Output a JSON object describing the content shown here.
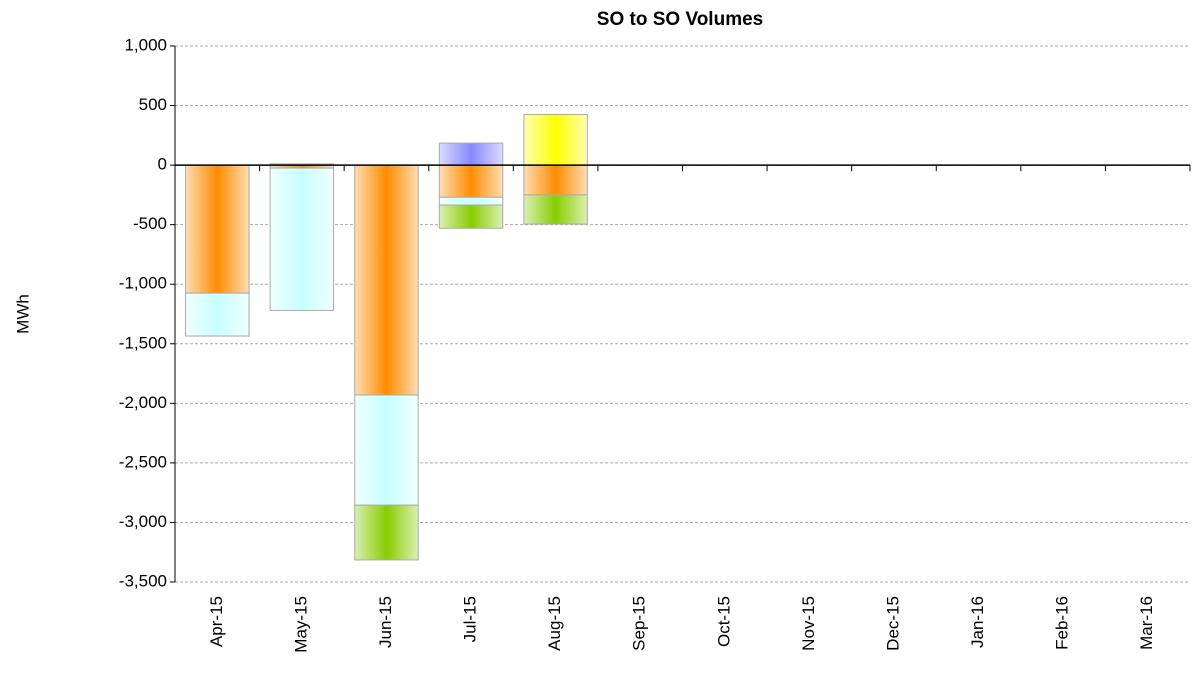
{
  "chart_data": {
    "type": "bar",
    "stacked": true,
    "title": "SO to SO Volumes",
    "y_label": "MWh",
    "categories": [
      "Apr-15",
      "May-15",
      "Jun-15",
      "Jul-15",
      "Aug-15",
      "Sep-15",
      "Oct-15",
      "Nov-15",
      "Dec-15",
      "Jan-16",
      "Feb-16",
      "Mar-16"
    ],
    "series": [
      {
        "color": "#ff8c00",
        "values": [
          -1075,
          -25,
          -1930,
          -270,
          -250,
          null,
          null,
          null,
          null,
          null,
          null,
          null
        ]
      },
      {
        "color": "#c8ffff",
        "values": [
          -360,
          -1195,
          -925,
          -65,
          null,
          null,
          null,
          null,
          null,
          null,
          null,
          null
        ]
      },
      {
        "color": "#88cc00",
        "values": [
          null,
          null,
          -460,
          -195,
          -245,
          null,
          null,
          null,
          null,
          null,
          null,
          null
        ]
      },
      {
        "color": "#8888ff",
        "values": [
          null,
          10,
          null,
          185,
          null,
          null,
          null,
          null,
          null,
          null,
          null,
          null
        ]
      },
      {
        "color": "#ffff00",
        "values": [
          null,
          null,
          null,
          null,
          425,
          null,
          null,
          null,
          null,
          null,
          null,
          null
        ]
      }
    ],
    "ylim": [
      -3500,
      1000
    ],
    "yticks": [
      {
        "value": 1000,
        "label": "1,000"
      },
      500,
      0,
      -500,
      {
        "value": -1000,
        "label": "-1,000"
      },
      {
        "value": -1500,
        "label": "-1,500"
      },
      {
        "value": -2000,
        "label": "-2,000"
      },
      {
        "value": -2500,
        "label": "-2,500"
      },
      {
        "value": -3000,
        "label": "-3,000"
      },
      {
        "value": -3500,
        "label": "-3,500"
      }
    ],
    "grid": true
  }
}
